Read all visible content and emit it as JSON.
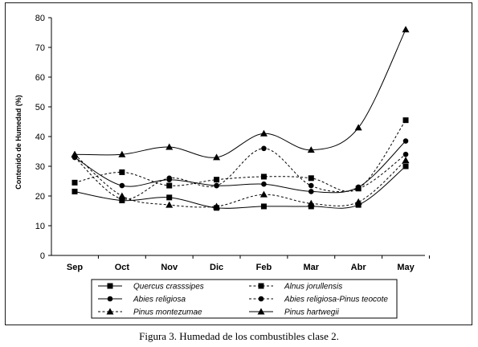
{
  "caption": "Figura 3. Humedad de los combustibles clase 2.",
  "chart_data": {
    "type": "line",
    "title": "",
    "xlabel": "",
    "ylabel": "Contenido de Humedad (%)",
    "categories": [
      "Sep",
      "Oct",
      "Nov",
      "Dic",
      "Feb",
      "Mar",
      "Abr",
      "May"
    ],
    "ylim": [
      0,
      80
    ],
    "yticks": [
      0,
      10,
      20,
      30,
      40,
      50,
      60,
      70,
      80
    ],
    "grid": false,
    "legend_position": "bottom",
    "series": [
      {
        "name": "Quercus crasssipes",
        "marker": "square",
        "dash": "solid",
        "values": [
          21.5,
          18.5,
          19.5,
          16,
          16.5,
          16.5,
          17,
          30
        ]
      },
      {
        "name": "Alnus jorullensis",
        "marker": "square",
        "dash": "dashed",
        "values": [
          24.5,
          28,
          23.5,
          25.5,
          26.5,
          26,
          22.5,
          45.5
        ]
      },
      {
        "name": "Abies religiosa",
        "marker": "circle",
        "dash": "solid",
        "values": [
          33,
          23.5,
          25.5,
          23.5,
          24,
          21.5,
          23,
          38.5
        ]
      },
      {
        "name": "Abies religiosa-Pinus teocote",
        "marker": "circle",
        "dash": "dashed",
        "values": [
          33,
          19,
          26,
          23.5,
          36,
          23.5,
          22.5,
          34
        ]
      },
      {
        "name": "Pinus montezumae",
        "marker": "triangle",
        "dash": "dashed",
        "values": [
          34,
          20,
          17,
          16.5,
          20.5,
          17.5,
          18,
          32
        ]
      },
      {
        "name": "Pinus hartwegii",
        "marker": "triangle",
        "dash": "solid",
        "values": [
          34,
          34,
          36.5,
          33,
          41,
          35.5,
          43,
          76
        ]
      }
    ]
  }
}
